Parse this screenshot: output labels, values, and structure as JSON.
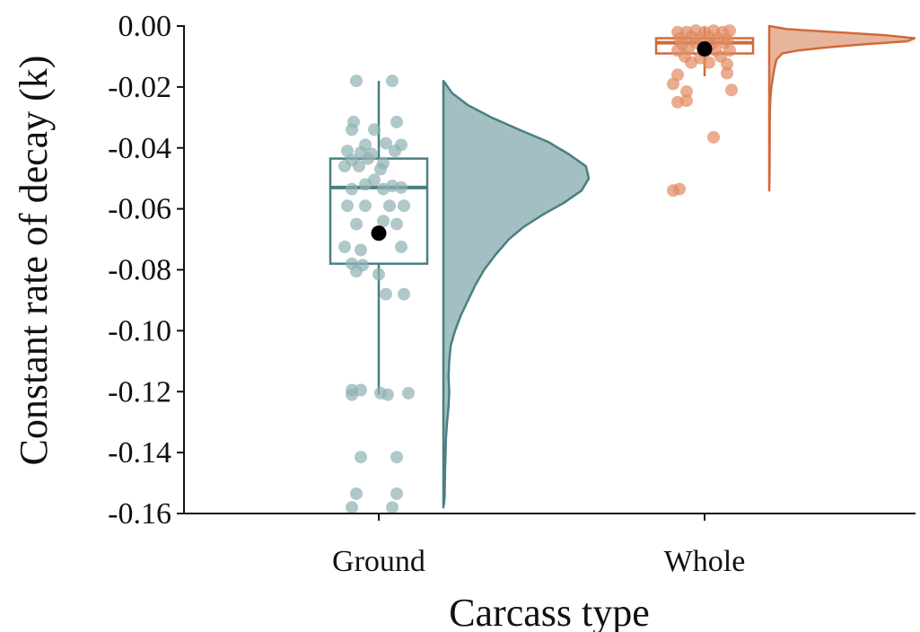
{
  "chart_data": {
    "type": "raincloud",
    "title": "",
    "xlabel": "Carcass type",
    "ylabel": "Constant rate of decay (k)",
    "ylim": [
      -0.16,
      0.0
    ],
    "yticks": [
      "0.00",
      "-0.02",
      "-0.04",
      "-0.06",
      "-0.08",
      "-0.10",
      "-0.12",
      "-0.14",
      "-0.16"
    ],
    "grid": false,
    "categories": [
      "Ground",
      "Whole"
    ],
    "series": [
      {
        "category": "Ground",
        "color": "#4a7f83",
        "point_color": "#8fb0b2",
        "box": {
          "whisker_high": -0.018,
          "q3": -0.0435,
          "median": -0.053,
          "q1": -0.078,
          "whisker_low": -0.121
        },
        "mean": -0.068,
        "points": [
          {
            "dx": -0.25,
            "y": -0.018
          },
          {
            "dx": 0.15,
            "y": -0.018
          },
          {
            "dx": -0.28,
            "y": -0.0315
          },
          {
            "dx": 0.2,
            "y": -0.0315
          },
          {
            "dx": -0.3,
            "y": -0.034
          },
          {
            "dx": -0.05,
            "y": -0.034
          },
          {
            "dx": -0.15,
            "y": -0.039
          },
          {
            "dx": 0.08,
            "y": -0.0385
          },
          {
            "dx": 0.25,
            "y": -0.039
          },
          {
            "dx": -0.35,
            "y": -0.041
          },
          {
            "dx": -0.2,
            "y": -0.0415
          },
          {
            "dx": 0.18,
            "y": -0.041
          },
          {
            "dx": -0.08,
            "y": -0.042
          },
          {
            "dx": -0.3,
            "y": -0.044
          },
          {
            "dx": -0.12,
            "y": -0.0435
          },
          {
            "dx": 0.05,
            "y": -0.045
          },
          {
            "dx": -0.38,
            "y": -0.046
          },
          {
            "dx": -0.22,
            "y": -0.046
          },
          {
            "dx": 0.02,
            "y": -0.047
          },
          {
            "dx": -0.05,
            "y": -0.0505
          },
          {
            "dx": -0.15,
            "y": -0.052
          },
          {
            "dx": 0.15,
            "y": -0.0525
          },
          {
            "dx": 0.25,
            "y": -0.053
          },
          {
            "dx": -0.3,
            "y": -0.0535
          },
          {
            "dx": 0.05,
            "y": -0.0535
          },
          {
            "dx": -0.35,
            "y": -0.059
          },
          {
            "dx": -0.15,
            "y": -0.059
          },
          {
            "dx": 0.12,
            "y": -0.059
          },
          {
            "dx": 0.28,
            "y": -0.059
          },
          {
            "dx": -0.25,
            "y": -0.065
          },
          {
            "dx": 0.05,
            "y": -0.064
          },
          {
            "dx": 0.2,
            "y": -0.065
          },
          {
            "dx": -0.38,
            "y": -0.0725
          },
          {
            "dx": -0.2,
            "y": -0.0735
          },
          {
            "dx": 0.25,
            "y": -0.0725
          },
          {
            "dx": -0.3,
            "y": -0.078
          },
          {
            "dx": -0.18,
            "y": -0.0785
          },
          {
            "dx": -0.25,
            "y": -0.0805
          },
          {
            "dx": 0.0,
            "y": -0.0815
          },
          {
            "dx": 0.08,
            "y": -0.088
          },
          {
            "dx": 0.28,
            "y": -0.088
          },
          {
            "dx": -0.3,
            "y": -0.1195
          },
          {
            "dx": -0.2,
            "y": -0.1195
          },
          {
            "dx": -0.3,
            "y": -0.121
          },
          {
            "dx": 0.02,
            "y": -0.1205
          },
          {
            "dx": 0.1,
            "y": -0.121
          },
          {
            "dx": 0.33,
            "y": -0.1205
          },
          {
            "dx": -0.2,
            "y": -0.1415
          },
          {
            "dx": 0.2,
            "y": -0.1415
          },
          {
            "dx": -0.25,
            "y": -0.1535
          },
          {
            "dx": 0.2,
            "y": -0.1535
          },
          {
            "dx": -0.3,
            "y": -0.158
          },
          {
            "dx": 0.15,
            "y": -0.158
          }
        ],
        "density": [
          [
            -0.018,
            0.0
          ],
          [
            -0.022,
            0.06
          ],
          [
            -0.026,
            0.17
          ],
          [
            -0.03,
            0.33
          ],
          [
            -0.034,
            0.52
          ],
          [
            -0.038,
            0.72
          ],
          [
            -0.042,
            0.86
          ],
          [
            -0.046,
            0.98
          ],
          [
            -0.05,
            1.0
          ],
          [
            -0.054,
            0.95
          ],
          [
            -0.058,
            0.83
          ],
          [
            -0.062,
            0.68
          ],
          [
            -0.066,
            0.55
          ],
          [
            -0.07,
            0.45
          ],
          [
            -0.075,
            0.36
          ],
          [
            -0.08,
            0.28
          ],
          [
            -0.085,
            0.22
          ],
          [
            -0.09,
            0.17
          ],
          [
            -0.095,
            0.12
          ],
          [
            -0.1,
            0.08
          ],
          [
            -0.105,
            0.05
          ],
          [
            -0.11,
            0.04
          ],
          [
            -0.115,
            0.035
          ],
          [
            -0.12,
            0.04
          ],
          [
            -0.125,
            0.035
          ],
          [
            -0.13,
            0.025
          ],
          [
            -0.135,
            0.018
          ],
          [
            -0.14,
            0.015
          ],
          [
            -0.145,
            0.012
          ],
          [
            -0.15,
            0.01
          ],
          [
            -0.155,
            0.008
          ],
          [
            -0.158,
            0.0
          ]
        ]
      },
      {
        "category": "Whole",
        "color": "#d06a3a",
        "point_color": "#e08a60",
        "box": {
          "whisker_high": -0.0005,
          "q3": -0.004,
          "median": -0.0055,
          "q1": -0.009,
          "whisker_low": -0.0165
        },
        "mean": -0.0075,
        "points": [
          {
            "dx": -0.3,
            "y": -0.002
          },
          {
            "dx": -0.2,
            "y": -0.002
          },
          {
            "dx": -0.1,
            "y": -0.0015
          },
          {
            "dx": 0.0,
            "y": -0.002
          },
          {
            "dx": 0.1,
            "y": -0.0015
          },
          {
            "dx": 0.2,
            "y": -0.002
          },
          {
            "dx": 0.28,
            "y": -0.0015
          },
          {
            "dx": -0.28,
            "y": -0.004
          },
          {
            "dx": -0.15,
            "y": -0.0035
          },
          {
            "dx": -0.05,
            "y": -0.004
          },
          {
            "dx": 0.05,
            "y": -0.0035
          },
          {
            "dx": 0.15,
            "y": -0.004
          },
          {
            "dx": 0.25,
            "y": -0.0045
          },
          {
            "dx": -0.25,
            "y": -0.006
          },
          {
            "dx": -0.1,
            "y": -0.0055
          },
          {
            "dx": 0.08,
            "y": -0.006
          },
          {
            "dx": 0.22,
            "y": -0.0055
          },
          {
            "dx": -0.3,
            "y": -0.008
          },
          {
            "dx": -0.18,
            "y": -0.0075
          },
          {
            "dx": 0.0,
            "y": -0.0085
          },
          {
            "dx": 0.12,
            "y": -0.008
          },
          {
            "dx": 0.28,
            "y": -0.008
          },
          {
            "dx": -0.22,
            "y": -0.01
          },
          {
            "dx": -0.05,
            "y": -0.0105
          },
          {
            "dx": 0.18,
            "y": -0.01
          },
          {
            "dx": -0.15,
            "y": -0.012
          },
          {
            "dx": 0.05,
            "y": -0.012
          },
          {
            "dx": 0.25,
            "y": -0.0125
          },
          {
            "dx": -0.3,
            "y": -0.016
          },
          {
            "dx": 0.25,
            "y": -0.0155
          },
          {
            "dx": -0.35,
            "y": -0.019
          },
          {
            "dx": -0.2,
            "y": -0.0215
          },
          {
            "dx": 0.3,
            "y": -0.021
          },
          {
            "dx": -0.3,
            "y": -0.025
          },
          {
            "dx": -0.2,
            "y": -0.0245
          },
          {
            "dx": 0.1,
            "y": -0.0365
          },
          {
            "dx": -0.35,
            "y": -0.054
          },
          {
            "dx": -0.28,
            "y": -0.0535
          }
        ],
        "density": [
          [
            0.0,
            0.0
          ],
          [
            -0.001,
            0.12
          ],
          [
            -0.002,
            0.45
          ],
          [
            -0.003,
            0.8
          ],
          [
            -0.004,
            1.0
          ],
          [
            -0.005,
            0.95
          ],
          [
            -0.006,
            0.65
          ],
          [
            -0.007,
            0.4
          ],
          [
            -0.008,
            0.2
          ],
          [
            -0.009,
            0.09
          ],
          [
            -0.011,
            0.05
          ],
          [
            -0.014,
            0.035
          ],
          [
            -0.017,
            0.025
          ],
          [
            -0.02,
            0.015
          ],
          [
            -0.024,
            0.008
          ],
          [
            -0.028,
            0.005
          ],
          [
            -0.032,
            0.004
          ],
          [
            -0.036,
            0.004
          ],
          [
            -0.04,
            0.003
          ],
          [
            -0.045,
            0.003
          ],
          [
            -0.05,
            0.002
          ],
          [
            -0.054,
            0.0
          ]
        ]
      }
    ]
  }
}
